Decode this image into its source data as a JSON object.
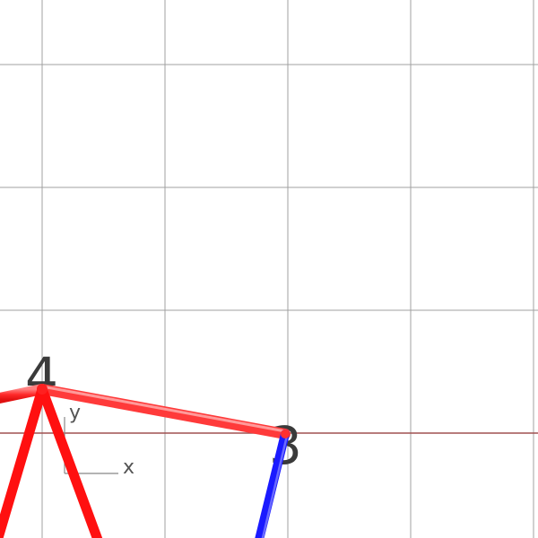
{
  "scene": {
    "background": "#ffffff",
    "grid_color": "#a0a0a0",
    "horizon_color": "#a05050",
    "label_color": "#3a3a3a"
  },
  "nodes": [
    {
      "id": "node-4",
      "label": "4"
    },
    {
      "id": "node-3",
      "label": "3"
    }
  ],
  "edges": [
    {
      "id": "edge-left-to-4",
      "color": "#ff2020"
    },
    {
      "id": "edge-4-to-3",
      "color": "#ff3030"
    },
    {
      "id": "edge-4-down-left",
      "color": "#ff0000"
    },
    {
      "id": "edge-4-down-right",
      "color": "#ff0000"
    },
    {
      "id": "edge-3-down",
      "color": "#1a1aff"
    }
  ],
  "axes": {
    "x_label": "x",
    "y_label": "y"
  }
}
